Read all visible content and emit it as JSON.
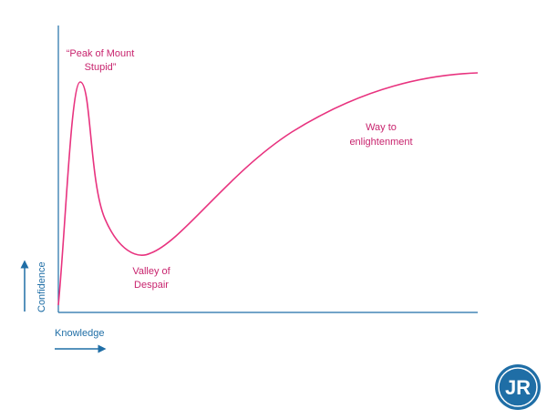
{
  "annotations": {
    "peak": [
      "“Peak of Mount",
      "Stupid”"
    ],
    "valley": [
      "Valley of",
      "Despair"
    ],
    "enlightenment": [
      "Way to",
      "enlightenment"
    ]
  },
  "axes": {
    "y_label": "Confidence",
    "x_label": "Knowledge"
  },
  "logo": "JR"
}
